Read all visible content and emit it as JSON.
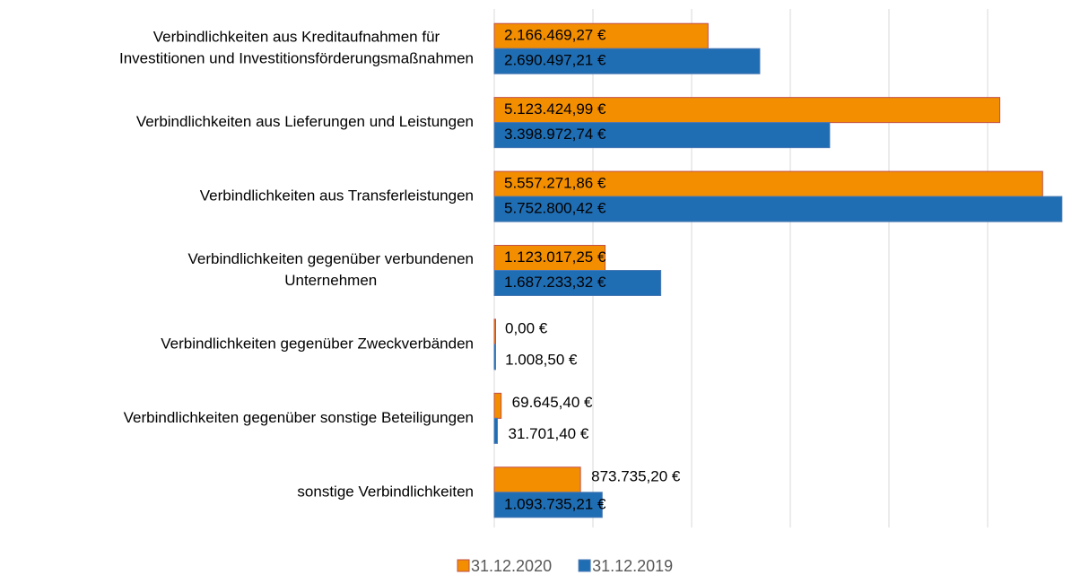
{
  "chart_data": {
    "type": "bar",
    "orientation": "horizontal",
    "categories": [
      [
        "Verbindlichkeiten aus Kreditaufnahmen für",
        "Investitionen und Investitionsförderungsmaßnahmen"
      ],
      [
        "Verbindlichkeiten aus Lieferungen und Leistungen"
      ],
      [
        "Verbindlichkeiten aus Transferleistungen"
      ],
      [
        "Verbindlichkeiten gegenüber verbundenen",
        "Unternehmen"
      ],
      [
        "Verbindlichkeiten gegenüber Zweckverbänden"
      ],
      [
        "Verbindlichkeiten gegenüber sonstige Beteiligungen"
      ],
      [
        "sonstige Verbindlichkeiten"
      ]
    ],
    "series": [
      {
        "name": "31.12.2020",
        "color": "#f28e00",
        "values": [
          2166469.27,
          5123424.99,
          5557271.86,
          1123017.25,
          0,
          69645.4,
          873735.2
        ],
        "value_labels": [
          "2.166.469,27 €",
          "5.123.424,99 €",
          "5.557.271,86 €",
          "1.123.017,25 €",
          "0,00 €",
          "69.645,40 €",
          "873.735,20 €"
        ]
      },
      {
        "name": "31.12.2019",
        "color": "#1f6db3",
        "values": [
          2690497.21,
          3398972.74,
          5752800.42,
          1687233.32,
          1008.5,
          31701.4,
          1093735.21
        ],
        "value_labels": [
          "2.690.497,21 €",
          "3.398.972,74 €",
          "5.752.800,42 €",
          "1.687.233,32 €",
          "1.008,50 €",
          "31.701,40 €",
          "1.093.735,21 €"
        ]
      }
    ],
    "xlim": [
      0,
      6000000
    ],
    "xticks": [
      0,
      1000000,
      2000000,
      3000000,
      4000000,
      5000000
    ],
    "grid": true,
    "legend": "bottom"
  }
}
